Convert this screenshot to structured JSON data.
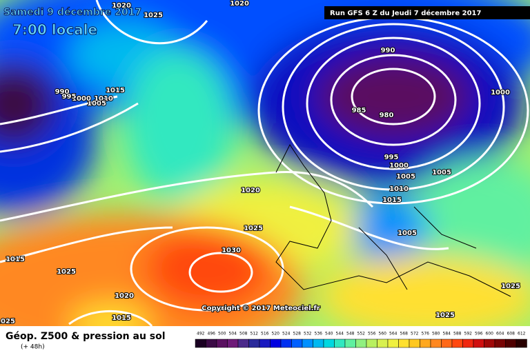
{
  "header": {
    "date": "Samedi 9 décembre 2017",
    "time": "7:00 locale",
    "run": "Run GFS 6 Z du Jeudi 7 décembre 2017"
  },
  "copyright": "Copyright © 2017 Meteociel.fr",
  "legend": {
    "title": "Géop. Z500 & pression au sol",
    "lead": "(+ 48h)",
    "scale": [
      492,
      496,
      500,
      504,
      508,
      512,
      516,
      520,
      524,
      528,
      532,
      536,
      540,
      544,
      548,
      552,
      556,
      560,
      564,
      568,
      572,
      576,
      580,
      584,
      588,
      592,
      596,
      600,
      604,
      608,
      612
    ],
    "colors": [
      "#1a0022",
      "#3b0a45",
      "#5a1060",
      "#6e1a78",
      "#4b2a8a",
      "#2a2a9a",
      "#1a1ac0",
      "#0000e0",
      "#0030f0",
      "#0060ff",
      "#0090ff",
      "#00b8f0",
      "#00d8e0",
      "#30e8c0",
      "#60f0a0",
      "#90f080",
      "#b8f060",
      "#d8f050",
      "#f0f040",
      "#ffe030",
      "#ffc820",
      "#ffa820",
      "#ff8820",
      "#ff6818",
      "#ff4810",
      "#f02810",
      "#d01010",
      "#a00808",
      "#780404",
      "#500000",
      "#280000"
    ]
  },
  "isobars": [
    "1020",
    "1025",
    "1020",
    "990",
    "1000",
    "985",
    "980",
    "995",
    "1000",
    "1005",
    "1005",
    "1010",
    "1015",
    "1020",
    "1025",
    "1030",
    "1005",
    "1015",
    "1010",
    "1005",
    "1000",
    "995",
    "990",
    "1015",
    "1025",
    "1020",
    "1015",
    "1025",
    "1025",
    "1025"
  ]
}
